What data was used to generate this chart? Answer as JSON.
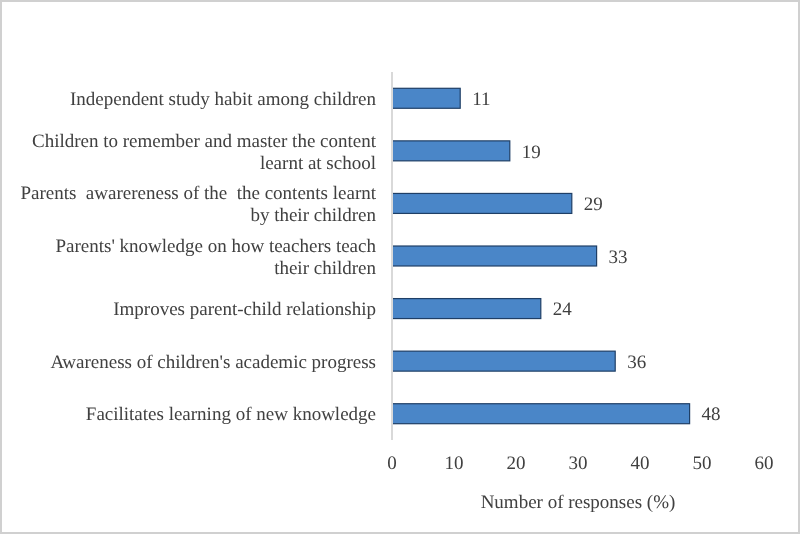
{
  "chart_data": {
    "type": "bar",
    "orientation": "horizontal",
    "xlabel": "Number of responses (%)",
    "categories": [
      "Independent study habit among children",
      "Children to remember and master the content learnt at school",
      "Parents  awarereness of the  the contents learnt by their children",
      "Parents' knowledge on how teachers teach their children",
      "Improves parent-child relationship",
      "Awareness of children's academic progress",
      "Facilitates learning of new knowledge"
    ],
    "values": [
      11,
      19,
      29,
      33,
      24,
      36,
      48
    ],
    "color": "#4a86c8",
    "xlim": [
      0,
      60
    ],
    "xticks": [
      0,
      10,
      20,
      30,
      40,
      50,
      60
    ],
    "data_labels": true,
    "grid": false
  }
}
